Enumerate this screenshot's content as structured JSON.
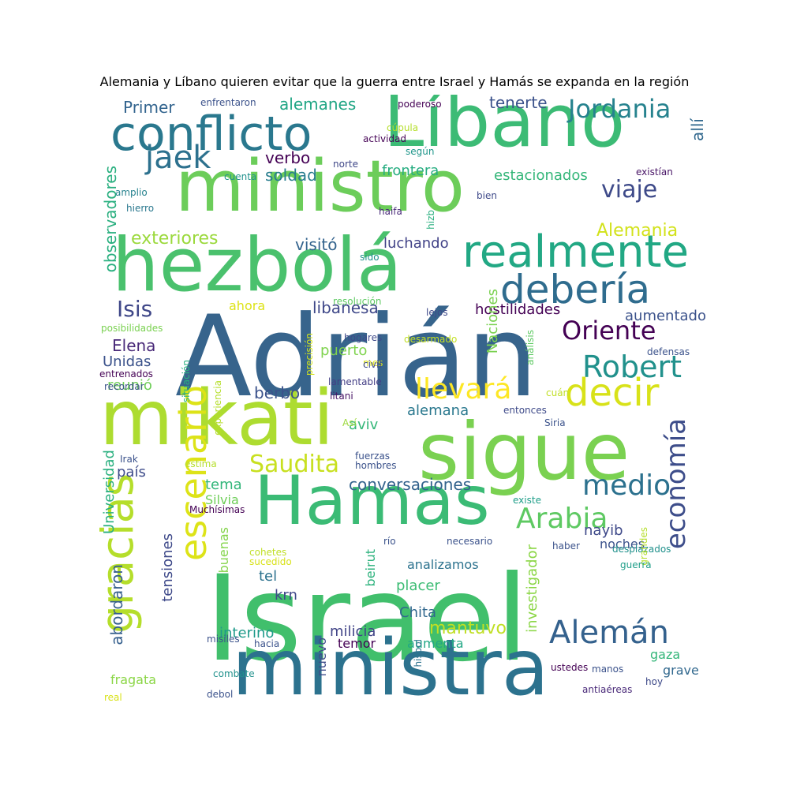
{
  "title": "Alemania y Líbano quieren evitar que la guerra entre Israel y Hamás se expanda en la región",
  "words": [
    {
      "text": "Israel",
      "color": "#41bf6c"
    },
    {
      "text": "Adrián",
      "color": "#37648c"
    },
    {
      "text": "ministra",
      "color": "#2c728e"
    },
    {
      "text": "sigue",
      "color": "#7ad151"
    },
    {
      "text": "mikati",
      "color": "#addc30"
    },
    {
      "text": "Líbano",
      "color": "#3cbb75"
    },
    {
      "text": "ministro",
      "color": "#6ccd5a"
    },
    {
      "text": "hezbolá",
      "color": "#4ac16d"
    },
    {
      "text": "Hamas",
      "color": "#3bbb75"
    },
    {
      "text": "conflicto",
      "color": "#2a788e"
    },
    {
      "text": "realmente",
      "color": "#22a884"
    },
    {
      "text": "debería",
      "color": "#2f6c8e"
    },
    {
      "text": "decir",
      "color": "#d8e219"
    },
    {
      "text": "gracias",
      "color": "#b5de2b"
    },
    {
      "text": "escenario",
      "color": "#dde318"
    },
    {
      "text": "Alemán",
      "color": "#34618d"
    },
    {
      "text": "Robert",
      "color": "#21918c"
    },
    {
      "text": "economía",
      "color": "#3d4d8a"
    },
    {
      "text": "medio",
      "color": "#2c718e"
    },
    {
      "text": "Arabia",
      "color": "#5ec962"
    },
    {
      "text": "llevará",
      "color": "#fde725"
    },
    {
      "text": "Saudita",
      "color": "#c8e020"
    },
    {
      "text": "viaje",
      "color": "#3e4a89"
    },
    {
      "text": "Oriente",
      "color": "#440154"
    },
    {
      "text": "Jordania",
      "color": "#26828e"
    },
    {
      "text": "jaek",
      "color": "#2d718e"
    },
    {
      "text": "Isis",
      "color": "#3f4788"
    },
    {
      "text": "Alemania",
      "color": "#d2e21b"
    },
    {
      "text": "exteriores",
      "color": "#9bd93c"
    },
    {
      "text": "observadores",
      "color": "#29af7f"
    },
    {
      "text": "Universidad",
      "color": "#2ab07f"
    },
    {
      "text": "abordaron",
      "color": "#355f8d"
    },
    {
      "text": "tensiones",
      "color": "#3e4989"
    },
    {
      "text": "mantuvo",
      "color": "#c0df25"
    },
    {
      "text": "investigador",
      "color": "#8bd646"
    },
    {
      "text": "conversaciones",
      "color": "#33638d"
    },
    {
      "text": "Primer",
      "color": "#32648e"
    },
    {
      "text": "alemanes",
      "color": "#21a685"
    },
    {
      "text": "tenerte",
      "color": "#3b528b"
    },
    {
      "text": "verbo",
      "color": "#440154"
    },
    {
      "text": "soldad",
      "color": "#287d8e"
    },
    {
      "text": "frontera",
      "color": "#27ad81"
    },
    {
      "text": "estacionados",
      "color": "#34b679"
    },
    {
      "text": "allí",
      "color": "#31688e"
    },
    {
      "text": "visitó",
      "color": "#33638d"
    },
    {
      "text": "luchando",
      "color": "#414287"
    },
    {
      "text": "libanesa",
      "color": "#3f4889"
    },
    {
      "text": "ahora",
      "color": "#dde318"
    },
    {
      "text": "hostilidades",
      "color": "#440154"
    },
    {
      "text": "aumentado",
      "color": "#3b528b"
    },
    {
      "text": "Nacione​s",
      "color": "#7ad151"
    },
    {
      "text": "Elena",
      "color": "#482878"
    },
    {
      "text": "Unidas",
      "color": "#3b528b"
    },
    {
      "text": "puerto",
      "color": "#7fd34e"
    },
    {
      "text": "reunió",
      "color": "#6ece58"
    },
    {
      "text": "berbo",
      "color": "#3b528b"
    },
    {
      "text": "país",
      "color": "#3e4c8a"
    },
    {
      "text": "alemana",
      "color": "#2a788e"
    },
    {
      "text": "aviv",
      "color": "#35b779"
    },
    {
      "text": "tema",
      "color": "#32b67a"
    },
    {
      "text": "Silvia",
      "color": "#6ece58"
    },
    {
      "text": "nayib",
      "color": "#3e4989"
    },
    {
      "text": "noches",
      "color": "#3b528b"
    },
    {
      "text": "analizamos",
      "color": "#2c728e"
    },
    {
      "text": "placer",
      "color": "#3dbc74"
    },
    {
      "text": "tel",
      "color": "#2c728e"
    },
    {
      "text": "krn",
      "color": "#3f4889"
    },
    {
      "text": "Chita",
      "color": "#31688e"
    },
    {
      "text": "beirut",
      "color": "#2db27d"
    },
    {
      "text": "buenas",
      "color": "#84d44b"
    },
    {
      "text": "interino",
      "color": "#1f9a8a"
    },
    {
      "text": "milicia",
      "color": "#414487"
    },
    {
      "text": "temor",
      "color": "#440154"
    },
    {
      "text": "aumenta",
      "color": "#22a785"
    },
    {
      "text": "nuevo",
      "color": "#3e4c8a"
    },
    {
      "text": "gaza",
      "color": "#34b679"
    },
    {
      "text": "grave",
      "color": "#31688e"
    },
    {
      "text": "fragata",
      "color": "#8bd646"
    },
    {
      "text": "enfrentaron",
      "color": "#3b528b"
    },
    {
      "text": "poderoso",
      "color": "#440154"
    },
    {
      "text": "cúpula",
      "color": "#b5de2b"
    },
    {
      "text": "actividad",
      "color": "#440154"
    },
    {
      "text": "según",
      "color": "#1f968b"
    },
    {
      "text": "norte",
      "color": "#3f4788"
    },
    {
      "text": "existían",
      "color": "#471365"
    },
    {
      "text": "cuenta",
      "color": "#21918c"
    },
    {
      "text": "amplio",
      "color": "#26828e"
    },
    {
      "text": "hierro",
      "color": "#2a788e"
    },
    {
      "text": "bien",
      "color": "#3e4989"
    },
    {
      "text": "haifa",
      "color": "#482878"
    },
    {
      "text": "hizb",
      "color": "#29af7f"
    },
    {
      "text": "sido",
      "color": "#21918c"
    },
    {
      "text": "resolución",
      "color": "#5ec962"
    },
    {
      "text": "lejos",
      "color": "#3e4989"
    },
    {
      "text": "posibilidades",
      "color": "#7ad151"
    },
    {
      "text": "hogares",
      "color": "#3e4989"
    },
    {
      "text": "precisión",
      "color": "#d2e21b"
    },
    {
      "text": "desarmado",
      "color": "#c2df23"
    },
    {
      "text": "análisis",
      "color": "#5ec962"
    },
    {
      "text": "defensas",
      "color": "#3b528b"
    },
    {
      "text": "mes",
      "color": "#dde318"
    },
    {
      "text": "civil",
      "color": "#3e4a89"
    },
    {
      "text": "entrenados",
      "color": "#440154"
    },
    {
      "text": "situación",
      "color": "#2ab07f"
    },
    {
      "text": "recordar",
      "color": "#3b528b"
    },
    {
      "text": "lamentable",
      "color": "#433e85"
    },
    {
      "text": "cuán",
      "color": "#c0df25"
    },
    {
      "text": "litani",
      "color": "#471365"
    },
    {
      "text": "experiencia",
      "color": "#b5de2b"
    },
    {
      "text": "entonces",
      "color": "#3e4a89"
    },
    {
      "text": "Siria",
      "color": "#3b528b"
    },
    {
      "text": "Así",
      "color": "#9bd93c"
    },
    {
      "text": "Irak",
      "color": "#3b528b"
    },
    {
      "text": "fuerzas",
      "color": "#3b528b"
    },
    {
      "text": "hombres",
      "color": "#3b528b"
    },
    {
      "text": "estima",
      "color": "#b5de2b"
    },
    {
      "text": "existe",
      "color": "#1f9e89"
    },
    {
      "text": "Muchísimas",
      "color": "#440154"
    },
    {
      "text": "río",
      "color": "#3b528b"
    },
    {
      "text": "necesario",
      "color": "#3b528b"
    },
    {
      "text": "haber",
      "color": "#3b528b"
    },
    {
      "text": "desplazados",
      "color": "#21918c"
    },
    {
      "text": "grandes",
      "color": "#b5de2b"
    },
    {
      "text": "cohetes",
      "color": "#c0df25"
    },
    {
      "text": "sucedido",
      "color": "#d8e219"
    },
    {
      "text": "guerra",
      "color": "#1f9e89"
    },
    {
      "text": "misiles",
      "color": "#3b528b"
    },
    {
      "text": "hacia",
      "color": "#3b528b"
    },
    {
      "text": "hisbol",
      "color": "#2c728e"
    },
    {
      "text": "ustedes",
      "color": "#440154"
    },
    {
      "text": "manos",
      "color": "#3b528b"
    },
    {
      "text": "combate",
      "color": "#21918c"
    },
    {
      "text": "hoy",
      "color": "#3e4a89"
    },
    {
      "text": "debol",
      "color": "#3b528b"
    },
    {
      "text": "antiaéreas",
      "color": "#482878"
    },
    {
      "text": "real",
      "color": "#d8e219"
    }
  ]
}
